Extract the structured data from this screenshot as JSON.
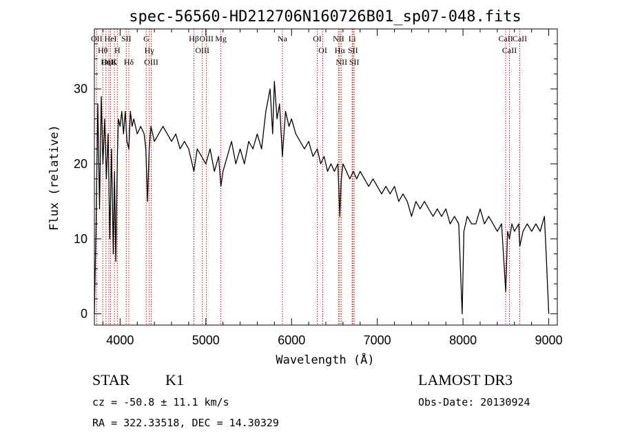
{
  "chart_data": {
    "type": "line",
    "title": "spec-56560-HD212706N160726B01_sp07-048.fits",
    "xlabel": "Wavelength (Å)",
    "ylabel": "Flux (relative)",
    "xlim": [
      3700,
      9100
    ],
    "ylim": [
      -1.5,
      38
    ],
    "xticks": [
      4000,
      5000,
      6000,
      7000,
      8000,
      9000
    ],
    "yticks": [
      0,
      10,
      20,
      30
    ],
    "grid": false,
    "series": [
      {
        "name": "flux",
        "x": [
          3700,
          3720,
          3740,
          3760,
          3780,
          3800,
          3820,
          3840,
          3860,
          3880,
          3900,
          3920,
          3935,
          3950,
          3968,
          3980,
          4000,
          4020,
          4040,
          4060,
          4080,
          4102,
          4120,
          4140,
          4160,
          4200,
          4240,
          4280,
          4300,
          4320,
          4340,
          4360,
          4380,
          4400,
          4450,
          4500,
          4550,
          4600,
          4650,
          4700,
          4750,
          4800,
          4861,
          4900,
          4950,
          5000,
          5050,
          5100,
          5150,
          5175,
          5200,
          5250,
          5300,
          5350,
          5400,
          5450,
          5500,
          5550,
          5600,
          5650,
          5700,
          5750,
          5780,
          5800,
          5830,
          5860,
          5893,
          5930,
          5970,
          6000,
          6050,
          6100,
          6150,
          6200,
          6250,
          6300,
          6340,
          6380,
          6420,
          6460,
          6500,
          6540,
          6563,
          6580,
          6600,
          6640,
          6680,
          6720,
          6760,
          6800,
          6850,
          6900,
          6950,
          7000,
          7050,
          7100,
          7150,
          7200,
          7250,
          7300,
          7350,
          7400,
          7450,
          7500,
          7550,
          7600,
          7650,
          7700,
          7750,
          7800,
          7850,
          7900,
          7950,
          7990,
          8010,
          8050,
          8100,
          8150,
          8200,
          8250,
          8300,
          8350,
          8400,
          8450,
          8498,
          8520,
          8542,
          8570,
          8600,
          8650,
          8662,
          8700,
          8750,
          8800,
          8850,
          8900,
          8950,
          8970,
          9000
        ],
        "y": [
          0,
          12,
          28,
          14,
          29,
          20,
          26,
          18,
          24,
          10,
          22,
          8,
          19,
          7,
          21,
          26,
          25,
          27,
          24,
          27,
          23,
          22,
          27,
          25,
          26,
          24,
          25,
          24,
          22,
          15,
          22,
          25,
          24,
          23,
          24,
          25,
          24,
          23,
          24,
          22,
          23,
          22,
          19,
          22,
          21,
          20,
          22,
          19,
          21,
          17,
          19,
          21,
          23,
          20,
          22,
          20,
          23,
          22,
          24,
          22,
          27,
          30,
          24,
          31,
          26,
          28,
          21,
          27,
          25,
          26,
          24,
          23,
          22,
          23,
          21,
          22,
          20,
          21,
          19,
          20,
          19,
          20,
          13,
          18,
          20,
          19,
          18,
          19,
          18,
          19,
          18,
          17,
          18,
          17,
          16,
          17,
          16,
          17,
          15,
          16,
          15,
          13,
          15,
          14,
          15,
          14,
          13,
          14,
          13,
          14,
          12,
          13,
          12,
          0,
          11,
          13,
          12,
          12,
          14,
          12,
          13,
          12,
          11,
          12,
          3,
          11,
          10,
          12,
          11,
          12,
          9,
          11,
          12,
          11,
          12,
          11,
          13,
          8,
          0
        ]
      }
    ],
    "line_markers": [
      {
        "label": "OII",
        "wavelength": 3727
      },
      {
        "label": "Hθ",
        "wavelength": 3798
      },
      {
        "label": "OIII",
        "wavelength": 3869
      },
      {
        "label": "HeI",
        "wavelength": 3889
      },
      {
        "label": "Hη",
        "wavelength": 3835
      },
      {
        "label": "K",
        "wavelength": 3934
      },
      {
        "label": "H",
        "wavelength": 3968
      },
      {
        "label": "SII",
        "wavelength": 4072
      },
      {
        "label": "Hδ",
        "wavelength": 4102
      },
      {
        "label": "G",
        "wavelength": 4305
      },
      {
        "label": "Hγ",
        "wavelength": 4340
      },
      {
        "label": "OIII",
        "wavelength": 4363
      },
      {
        "label": "Hβ",
        "wavelength": 4861
      },
      {
        "label": "OIII",
        "wavelength": 4959
      },
      {
        "label": "OIII",
        "wavelength": 5007
      },
      {
        "label": "Mg",
        "wavelength": 5175
      },
      {
        "label": "Na",
        "wavelength": 5893
      },
      {
        "label": "OI",
        "wavelength": 6300
      },
      {
        "label": "OI",
        "wavelength": 6364
      },
      {
        "label": "NII",
        "wavelength": 6548
      },
      {
        "label": "Hα",
        "wavelength": 6563
      },
      {
        "label": "NII",
        "wavelength": 6583
      },
      {
        "label": "Li",
        "wavelength": 6707
      },
      {
        "label": "SII",
        "wavelength": 6716
      },
      {
        "label": "SII",
        "wavelength": 6731
      },
      {
        "label": "CaII",
        "wavelength": 8498
      },
      {
        "label": "CaII",
        "wavelength": 8542
      },
      {
        "label": "CaII",
        "wavelength": 8662
      }
    ]
  },
  "info": {
    "class": "STAR",
    "subclass": "K1",
    "survey": "LAMOST DR3",
    "cz": "cz = -50.8 ± 11.1 km/s",
    "obs_date": "Obs-Date: 20130924",
    "radec": "RA = 322.33518, DEC =  14.30329"
  },
  "colors": {
    "line": "#000000",
    "marker": "#cc0000",
    "axis": "#000000"
  }
}
